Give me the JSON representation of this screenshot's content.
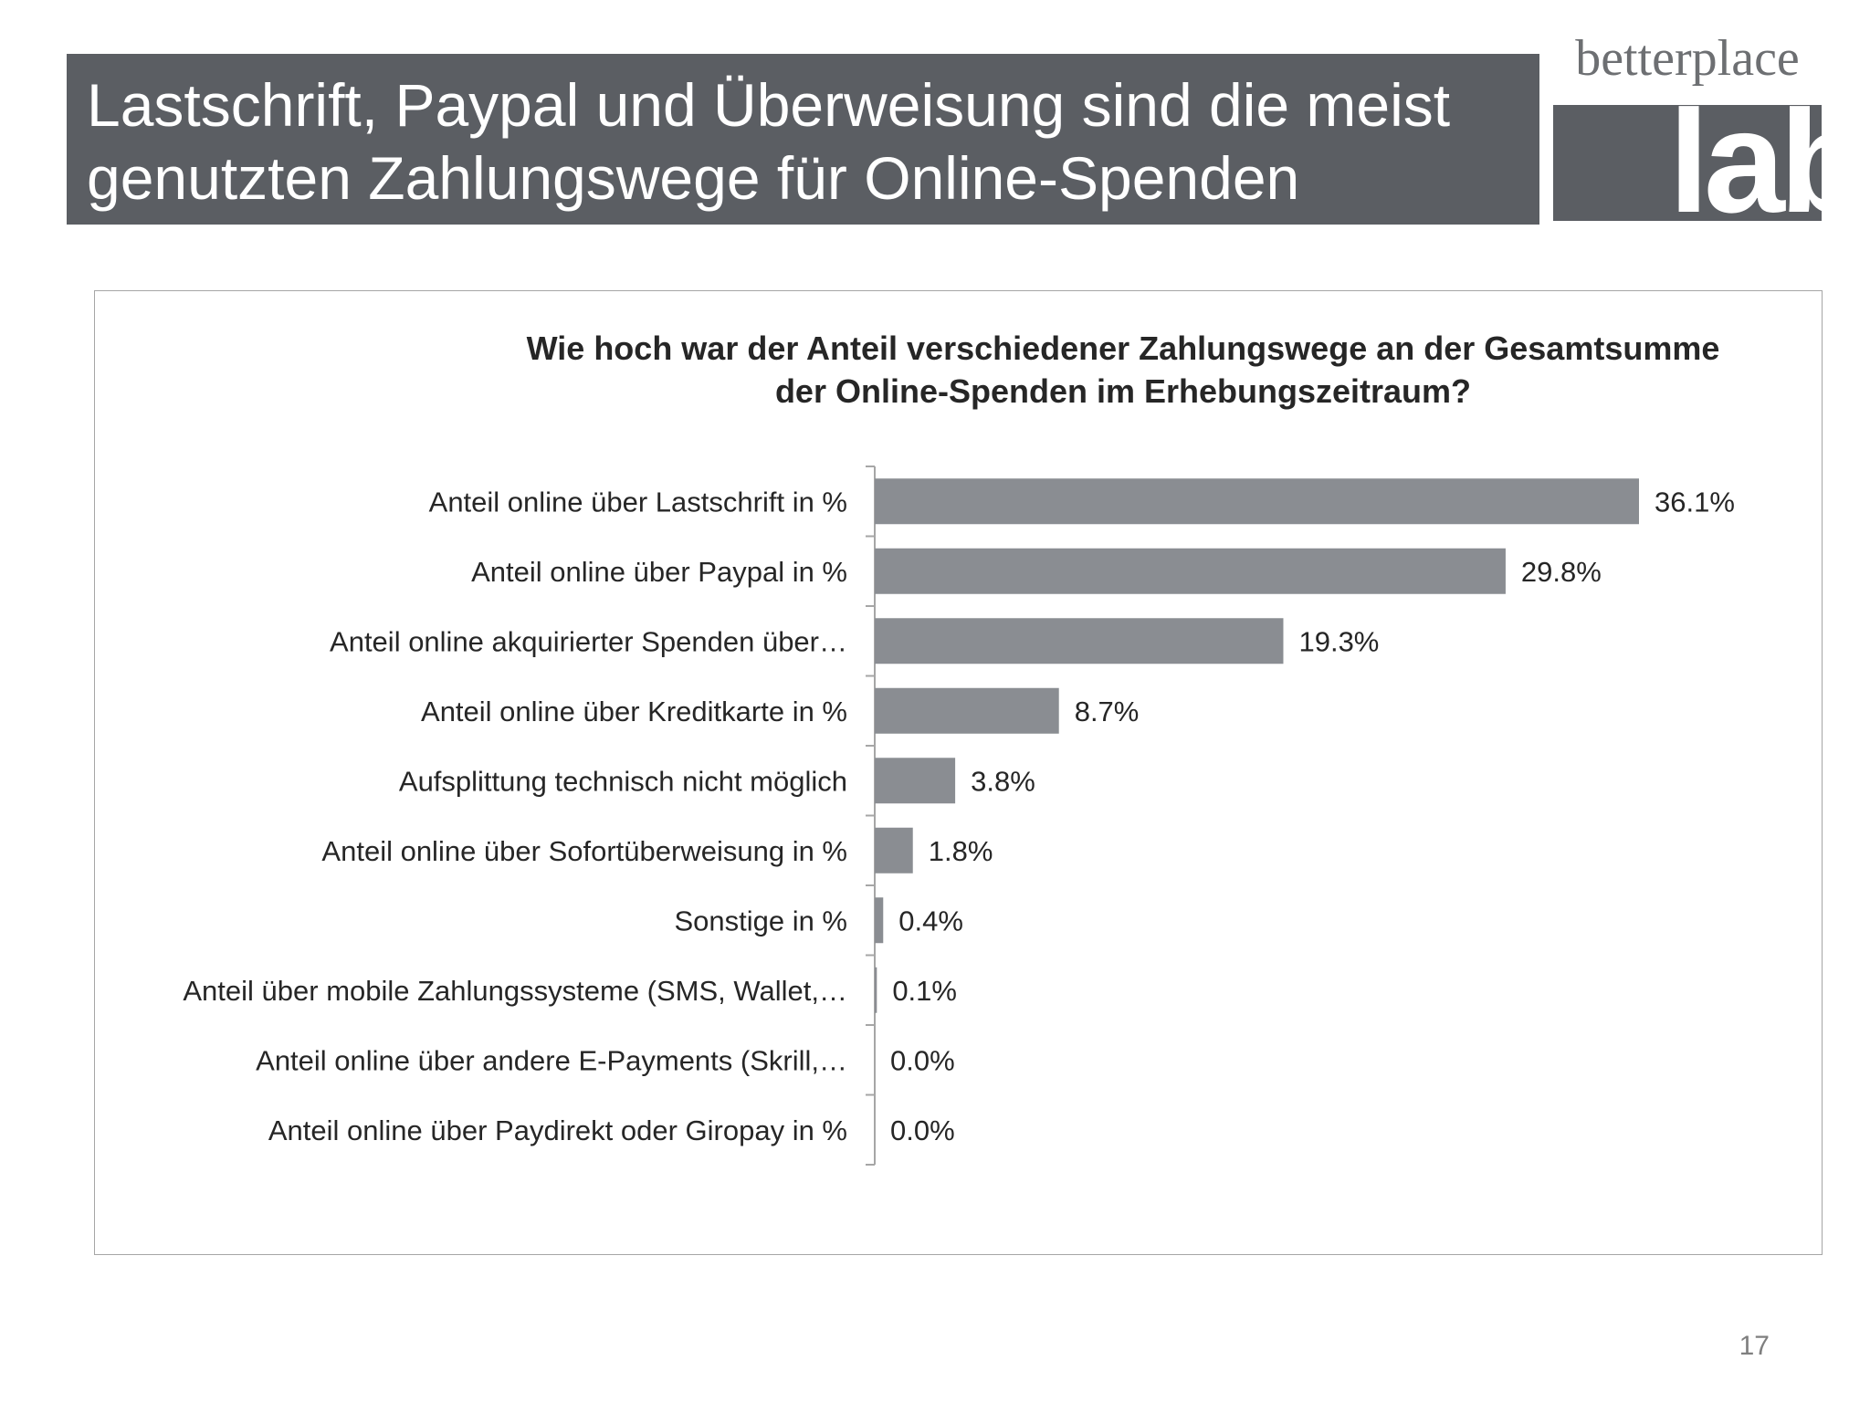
{
  "slide": {
    "title_lines": [
      "Lastschrift, Paypal und Überweisung sind die meist",
      "genutzten Zahlungswege für Online-Spenden"
    ],
    "logo": {
      "top_text": "betterplace",
      "bottom_text": "lab"
    },
    "page_number": "17"
  },
  "colors": {
    "title_bar": "#5b5e63",
    "bar": "#8a8d92",
    "axis": "#a6a6a6",
    "text": "#262626"
  },
  "chart_data": {
    "type": "bar",
    "orientation": "horizontal",
    "title_lines": [
      "Wie hoch war der Anteil verschiedener Zahlungswege an der Gesamtsumme",
      "der Online-Spenden im Erhebungszeitraum?"
    ],
    "categories": [
      "Anteil online über Lastschrift in %",
      "Anteil online über Paypal in %",
      "Anteil online akquirierter Spenden über…",
      "Anteil online über Kreditkarte in %",
      "Aufsplittung technisch nicht möglich",
      "Anteil online über Sofortüberweisung in %",
      "Sonstige in %",
      "Anteil über mobile Zahlungssysteme (SMS, Wallet,…",
      "Anteil online über andere E-Payments (Skrill,…",
      "Anteil online über Paydirekt oder Giropay in %"
    ],
    "values": [
      36.1,
      29.8,
      19.3,
      8.7,
      3.8,
      1.8,
      0.4,
      0.1,
      0.0,
      0.0
    ],
    "value_labels": [
      "36.1%",
      "29.8%",
      "19.3%",
      "8.7%",
      "3.8%",
      "1.8%",
      "0.4%",
      "0.1%",
      "0.0%",
      "0.0%"
    ],
    "xlim": [
      0,
      36.1
    ],
    "grid": false,
    "legend": "none"
  }
}
